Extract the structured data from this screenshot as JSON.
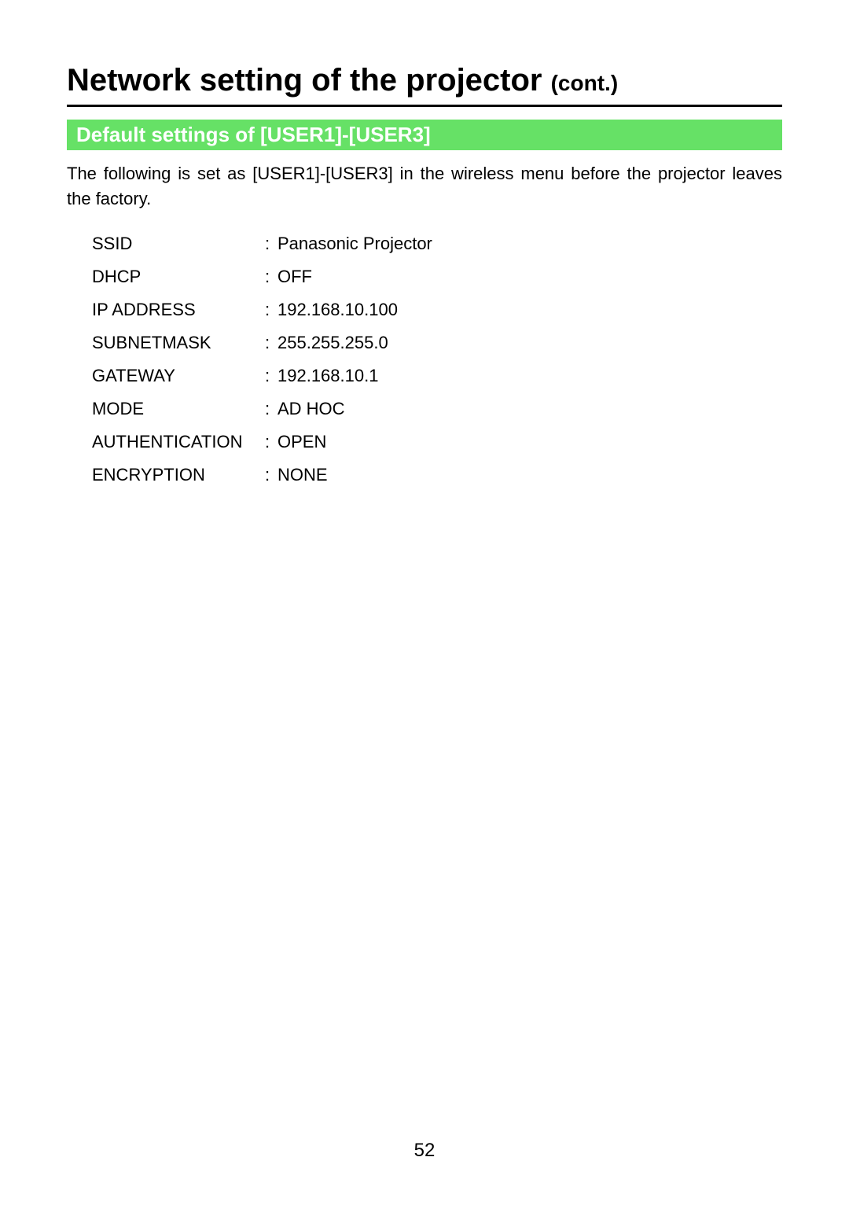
{
  "title": {
    "main": "Network setting of the projector ",
    "cont": "(cont.)"
  },
  "section": {
    "header": "Default settings of [USER1]-[USER3]",
    "intro": "The following is set as [USER1]-[USER3] in the wireless menu before the projector leaves the factory."
  },
  "settings": {
    "rows": [
      {
        "label": "SSID",
        "value": "Panasonic Projector"
      },
      {
        "label": "DHCP",
        "value": "OFF"
      },
      {
        "label": "IP ADDRESS",
        "value": "192.168.10.100"
      },
      {
        "label": "SUBNETMASK",
        "value": "255.255.255.0"
      },
      {
        "label": "GATEWAY",
        "value": "192.168.10.1"
      },
      {
        "label": "MODE",
        "value": "AD HOC"
      },
      {
        "label": "AUTHENTICATION",
        "value": "OPEN"
      },
      {
        "label": "ENCRYPTION",
        "value": "NONE"
      }
    ]
  },
  "pageNumber": "52",
  "colors": {
    "sectionHeaderBg": "#66e166",
    "sectionHeaderText": "#ffffff",
    "bodyText": "#000000",
    "background": "#ffffff"
  },
  "typography": {
    "mainTitleSize": 40,
    "contSize": 28,
    "sectionHeaderSize": 26,
    "bodySize": 22,
    "pageNumberSize": 24
  }
}
